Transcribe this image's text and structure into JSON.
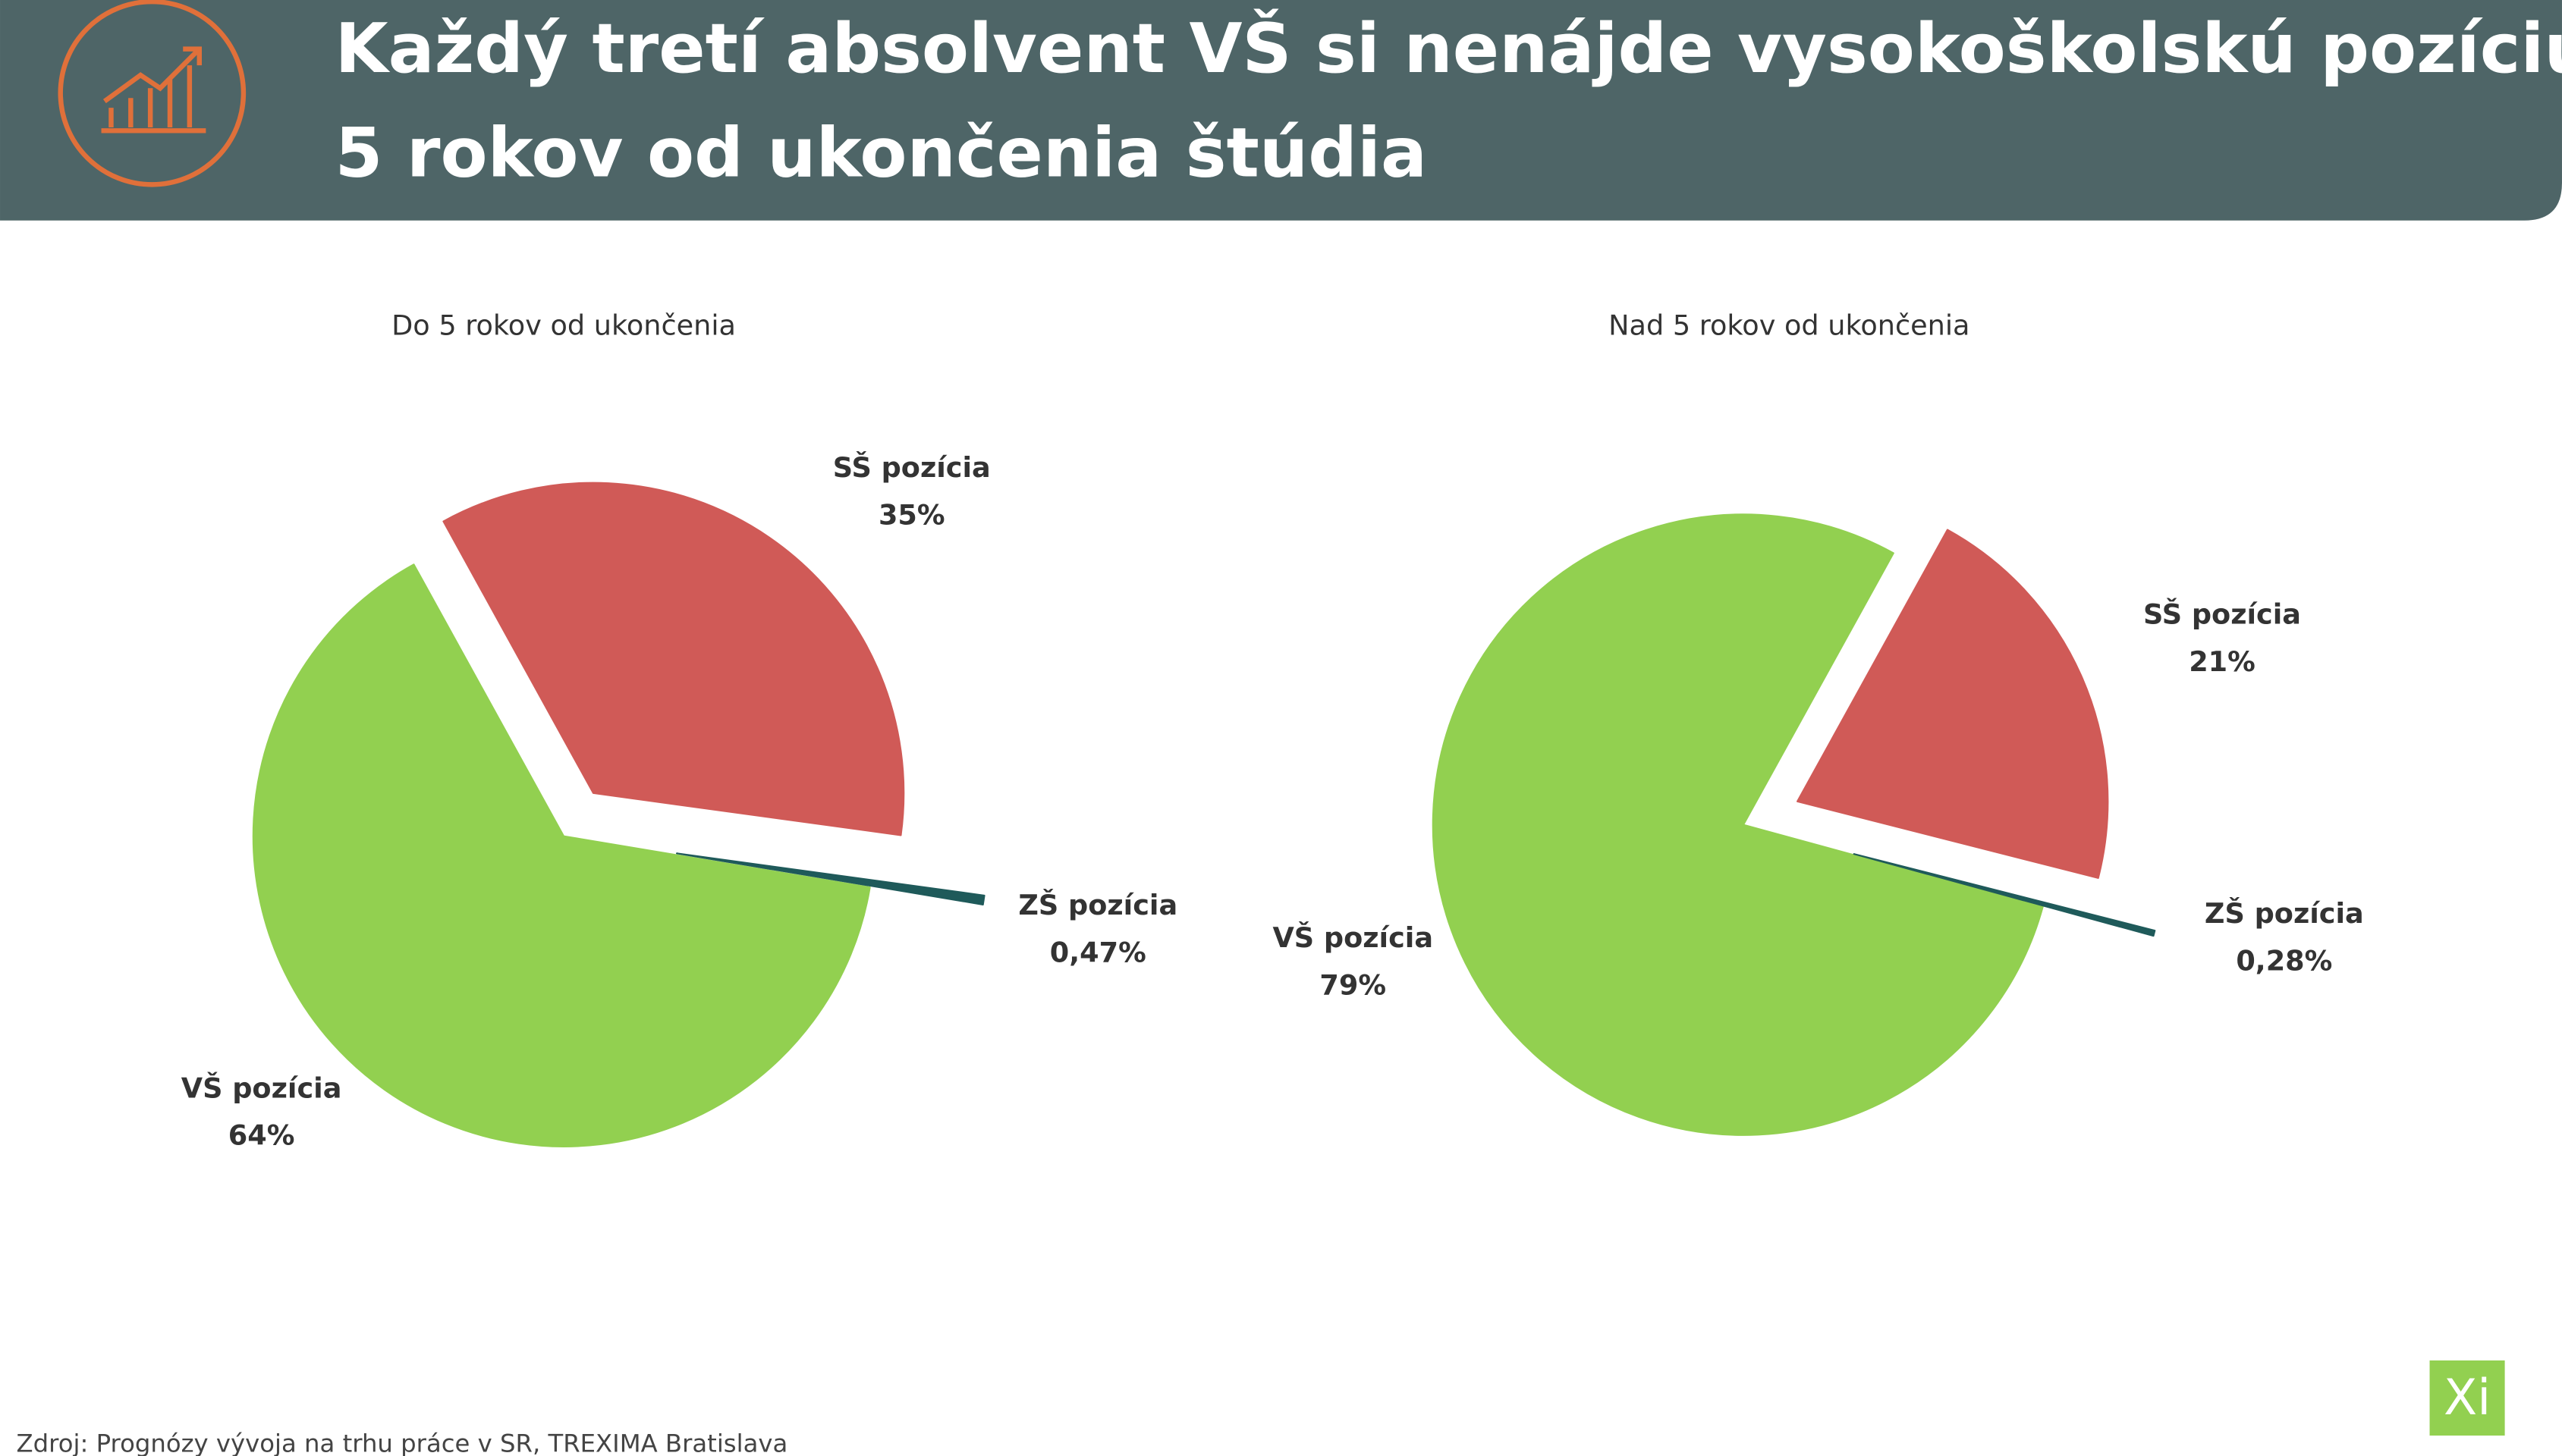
{
  "title": [
    "Každý tretí absolvent VŠ si nenájde vysokoškolskú pozíciu do",
    "5 rokov od ukončenia štúdia"
  ],
  "chart_data": [
    {
      "type": "pie",
      "title": "Do 5 rokov od ukončenia",
      "categories": [
        "VŠ pozícia",
        "SŠ pozícia",
        "ZŠ pozícia"
      ],
      "values": [
        64,
        35,
        0.47
      ],
      "value_labels": [
        "64%",
        "35%",
        "0,47%"
      ],
      "colors": [
        "#92d050",
        "#d05a57",
        "#1f5a5a"
      ]
    },
    {
      "type": "pie",
      "title": "Nad 5 rokov od ukončenia",
      "categories": [
        "VŠ pozícia",
        "SŠ pozícia",
        "ZŠ pozícia"
      ],
      "values": [
        79,
        21,
        0.28
      ],
      "value_labels": [
        "79%",
        "21%",
        "0,28%"
      ],
      "colors": [
        "#92d050",
        "#d05a57",
        "#1f5a5a"
      ]
    }
  ],
  "source": "Zdroj: Prognózy vývoja na trhu práce v SR, TREXIMA Bratislava",
  "logo_text": "Xi"
}
